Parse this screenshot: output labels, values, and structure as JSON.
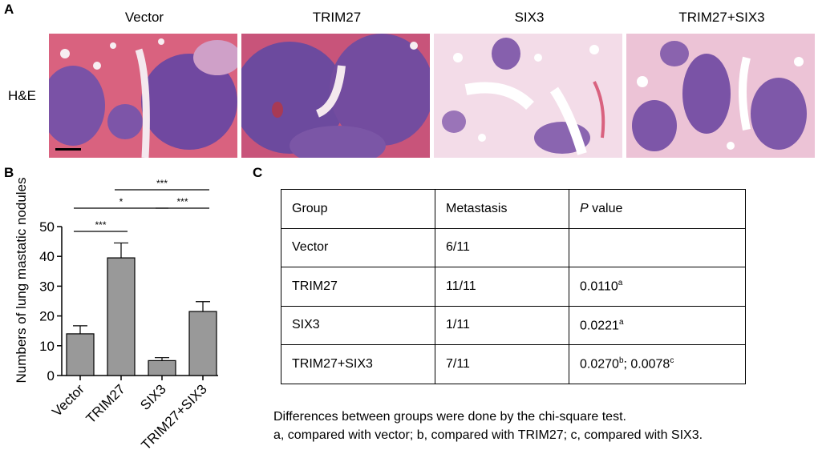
{
  "panels": {
    "a": "A",
    "b": "B",
    "c": "C"
  },
  "panel_a": {
    "columns": [
      "Vector",
      "TRIM27",
      "SIX3",
      "TRIM27+SIX3"
    ],
    "row_label": "H&E"
  },
  "chart_data": {
    "type": "bar",
    "categories": [
      "Vector",
      "TRIM27",
      "SIX3",
      "TRIM27+SIX3"
    ],
    "values": [
      14,
      39.5,
      5,
      21.5
    ],
    "errors": [
      2.7,
      5,
      1,
      3.3
    ],
    "ylabel": "Numbers of lung mastatic nodules",
    "xlabel": "",
    "ylim": [
      0,
      50
    ],
    "yticks": [
      0,
      10,
      20,
      30,
      40,
      50
    ],
    "bar_color": "#999999",
    "significance": [
      {
        "from": "Vector",
        "to": "TRIM27",
        "label": "***"
      },
      {
        "from": "Vector",
        "to": "SIX3",
        "label": "*"
      },
      {
        "from": "TRIM27",
        "to": "TRIM27+SIX3",
        "label": "***"
      },
      {
        "from": "SIX3",
        "to": "TRIM27+SIX3",
        "label": "***"
      }
    ]
  },
  "table_c": {
    "header": {
      "group": "Group",
      "metastasis": "Metastasis",
      "p_italic": "P",
      "p_rest": " value"
    },
    "rows": [
      {
        "group": "Vector",
        "metastasis": "6/11",
        "p": []
      },
      {
        "group": "TRIM27",
        "metastasis": "11/11",
        "p": [
          {
            "v": "0.0110",
            "s": "a"
          }
        ]
      },
      {
        "group": "SIX3",
        "metastasis": "1/11",
        "p": [
          {
            "v": "0.0221",
            "s": "a"
          }
        ]
      },
      {
        "group": "TRIM27+SIX3",
        "metastasis": "7/11",
        "p": [
          {
            "v": "0.0270",
            "s": "b"
          },
          {
            "v": "; 0.0078",
            "s": "c"
          }
        ]
      }
    ]
  },
  "notes": [
    "Differences between groups were done by the chi-square test.",
    "a, compared with vector; b, compared with TRIM27; c, compared with SIX3."
  ]
}
